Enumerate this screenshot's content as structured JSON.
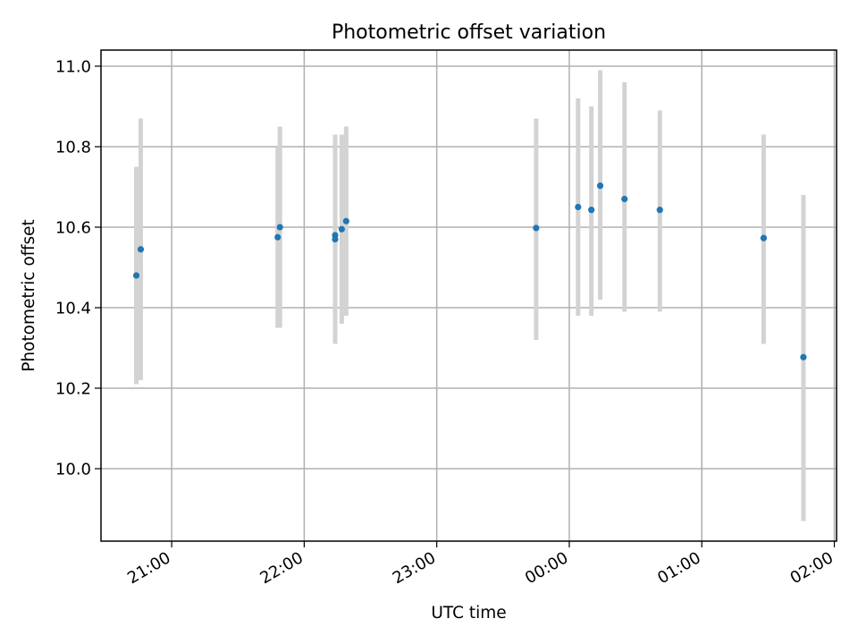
{
  "chart_data": {
    "type": "scatter",
    "title": "Photometric offset variation",
    "xlabel": "UTC time",
    "ylabel": "Photometric offset",
    "x_tick_labels": [
      "21:00",
      "22:00",
      "23:00",
      "00:00",
      "01:00",
      "02:00"
    ],
    "y_tick_labels": [
      "10.0",
      "10.2",
      "10.4",
      "10.6",
      "10.8",
      "11.0"
    ],
    "y_ticks": [
      10.0,
      10.2,
      10.4,
      10.6,
      10.8,
      11.0
    ],
    "xlim": [
      "20:28",
      "02:01"
    ],
    "ylim": [
      9.82,
      11.04
    ],
    "grid": true,
    "points": [
      {
        "x": "20:44",
        "y": 10.48,
        "y_low": 10.21,
        "y_high": 10.75
      },
      {
        "x": "20:46",
        "y": 10.545,
        "y_low": 10.22,
        "y_high": 10.87
      },
      {
        "x": "21:48",
        "y": 10.575,
        "y_low": 10.35,
        "y_high": 10.8
      },
      {
        "x": "21:49",
        "y": 10.6,
        "y_low": 10.35,
        "y_high": 10.85
      },
      {
        "x": "22:14",
        "y": 10.57,
        "y_low": 10.31,
        "y_high": 10.83
      },
      {
        "x": "22:14",
        "y": 10.58,
        "y_low": 10.32,
        "y_high": 10.83
      },
      {
        "x": "22:17",
        "y": 10.595,
        "y_low": 10.36,
        "y_high": 10.83
      },
      {
        "x": "22:19",
        "y": 10.615,
        "y_low": 10.38,
        "y_high": 10.85
      },
      {
        "x": "23:45",
        "y": 10.598,
        "y_low": 10.32,
        "y_high": 10.87
      },
      {
        "x": "00:04",
        "y": 10.65,
        "y_low": 10.38,
        "y_high": 10.92
      },
      {
        "x": "00:10",
        "y": 10.643,
        "y_low": 10.38,
        "y_high": 10.9
      },
      {
        "x": "00:14",
        "y": 10.703,
        "y_low": 10.42,
        "y_high": 10.99
      },
      {
        "x": "00:25",
        "y": 10.67,
        "y_low": 10.39,
        "y_high": 10.96
      },
      {
        "x": "00:41",
        "y": 10.643,
        "y_low": 10.39,
        "y_high": 10.89
      },
      {
        "x": "01:28",
        "y": 10.573,
        "y_low": 10.31,
        "y_high": 10.83
      },
      {
        "x": "01:46",
        "y": 10.277,
        "y_low": 9.87,
        "y_high": 10.68
      }
    ],
    "colors": {
      "marker": "#1f77b4",
      "error_bar": "#d3d3d3",
      "grid": "#b0b0b0"
    }
  }
}
